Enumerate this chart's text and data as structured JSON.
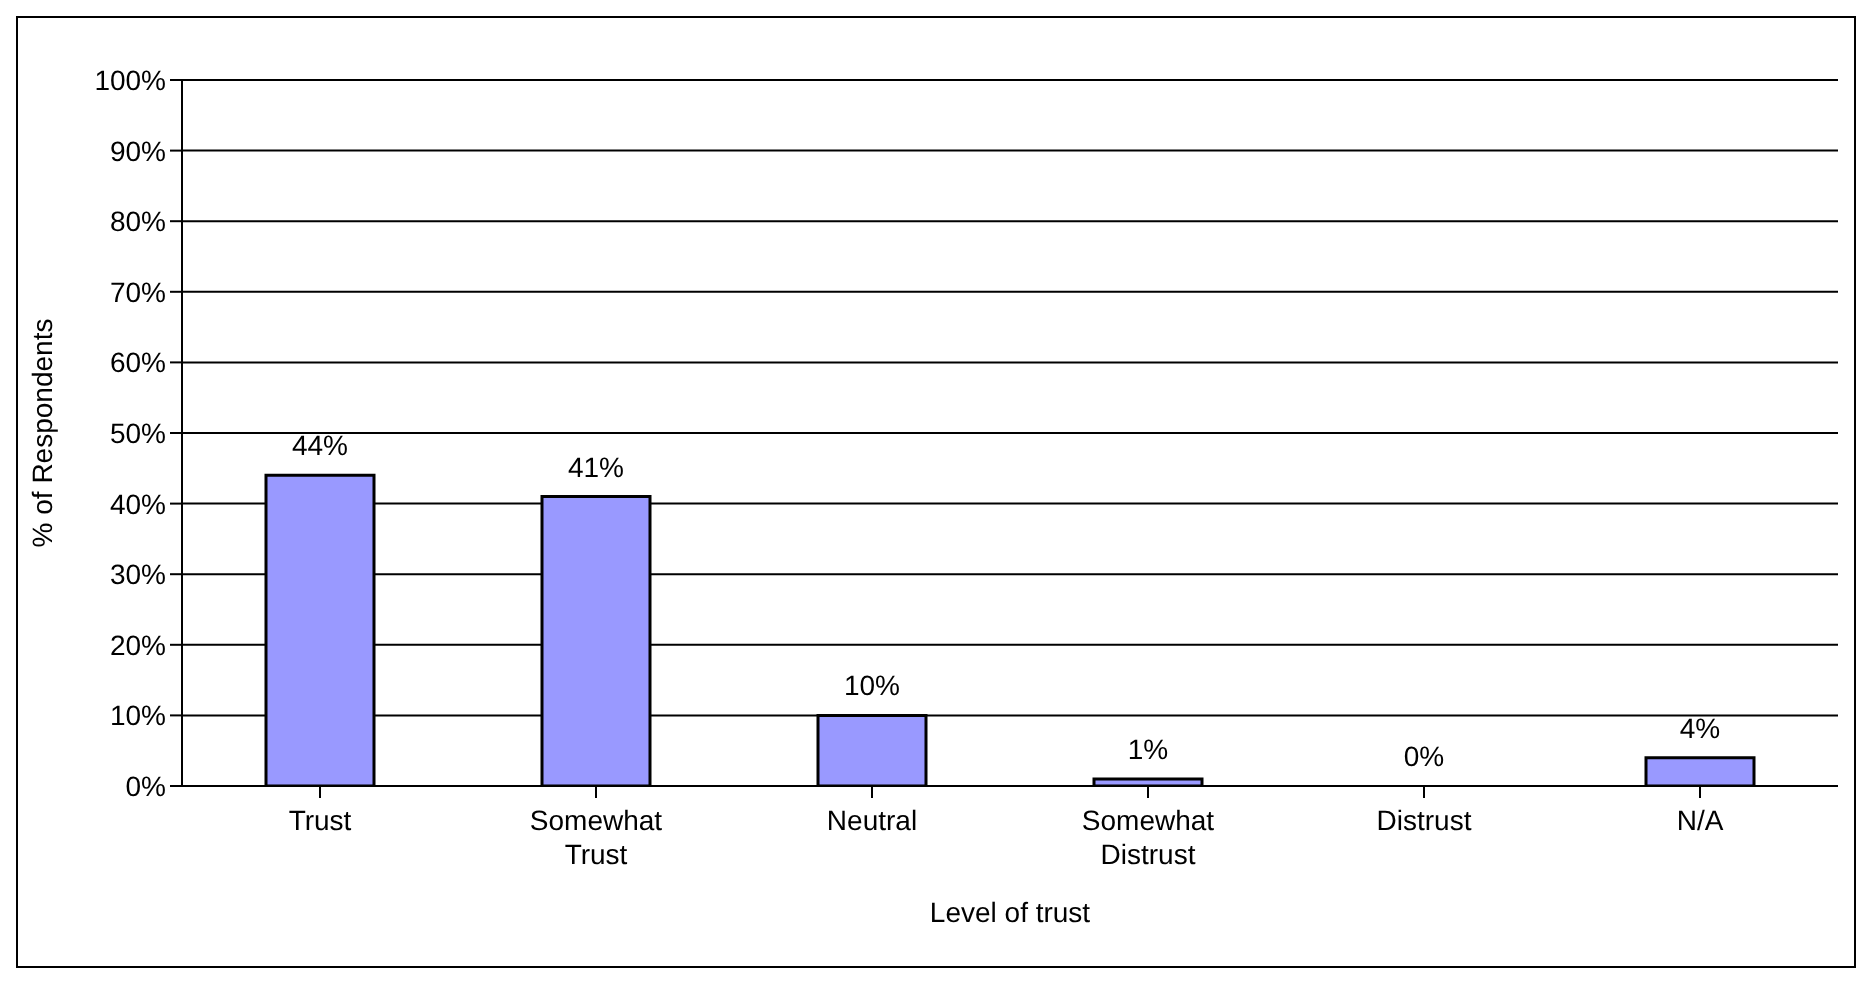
{
  "chart_data": {
    "type": "bar",
    "xlabel": "Level of trust",
    "ylabel": "% of Respondents",
    "categories": [
      "Trust",
      "Somewhat Trust",
      "Neutral",
      "Somewhat Distrust",
      "Distrust",
      "N/A"
    ],
    "values": [
      44,
      41,
      10,
      1,
      0,
      4
    ],
    "value_labels": [
      "44%",
      "41%",
      "10%",
      "1%",
      "0%",
      "4%"
    ],
    "color": "#9999ff",
    "ylim": [
      0,
      100
    ],
    "yticks": [
      {
        "value": 0,
        "label": "0%"
      },
      {
        "value": 10,
        "label": "10%"
      },
      {
        "value": 20,
        "label": "20%"
      },
      {
        "value": 30,
        "label": "30%"
      },
      {
        "value": 40,
        "label": "40%"
      },
      {
        "value": 50,
        "label": "50%"
      },
      {
        "value": 60,
        "label": "60%"
      },
      {
        "value": 70,
        "label": "70%"
      },
      {
        "value": 80,
        "label": "80%"
      },
      {
        "value": 90,
        "label": "90%"
      },
      {
        "value": 100,
        "label": "100%"
      }
    ],
    "grid": "y",
    "legend": false
  }
}
